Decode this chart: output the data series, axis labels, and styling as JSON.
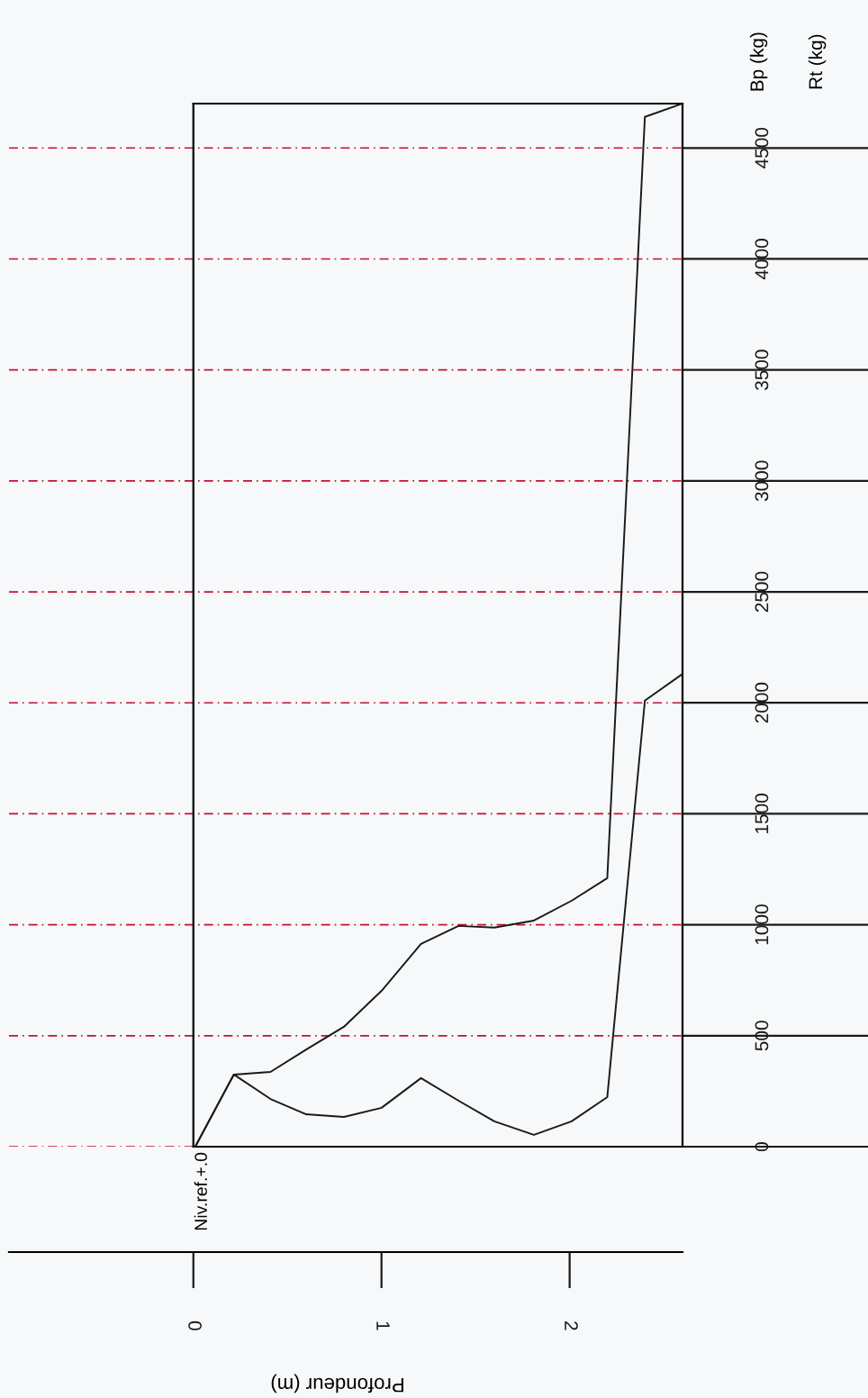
{
  "chart_data": {
    "type": "line",
    "xlabel": "Profondeur (m)",
    "ylabel": "Bp (kg)",
    "annotations": [
      "Rt (kg)",
      {
        "text": "Niv.ref.+.0",
        "x": 0,
        "y": 0
      }
    ],
    "series": [
      {
        "color": "#1a1a1a",
        "x": [
          0.01,
          0.215,
          0.41,
          0.6,
          0.8,
          1.0,
          1.21,
          1.41,
          1.6,
          1.81,
          2.01,
          2.2,
          2.4,
          2.6
        ],
        "values": [
          0,
          325,
          215,
          146,
          134,
          175,
          309,
          207,
          114,
          53,
          114,
          223,
          2010,
          2130
        ]
      },
      {
        "color": "#1a1a1a",
        "x": [
          0.01,
          0.215,
          0.41,
          0.6,
          0.8,
          1.0,
          1.21,
          1.41,
          1.6,
          1.81,
          2.01,
          2.2,
          2.4,
          2.6
        ],
        "values": [
          0,
          325,
          337,
          438,
          540,
          702,
          914,
          995,
          987,
          1019,
          1108,
          1210,
          4640,
          4700
        ]
      }
    ],
    "xlim": [
      -0.98,
      2.6
    ],
    "xticks": [
      0,
      1,
      2
    ],
    "ylim": [
      0,
      4700
    ],
    "yticks": [
      0,
      500,
      1000,
      1500,
      2000,
      2500,
      3000,
      3500,
      4000,
      4500
    ],
    "grid": "y",
    "marker": "none",
    "line_style": "solid",
    "legend": false
  }
}
